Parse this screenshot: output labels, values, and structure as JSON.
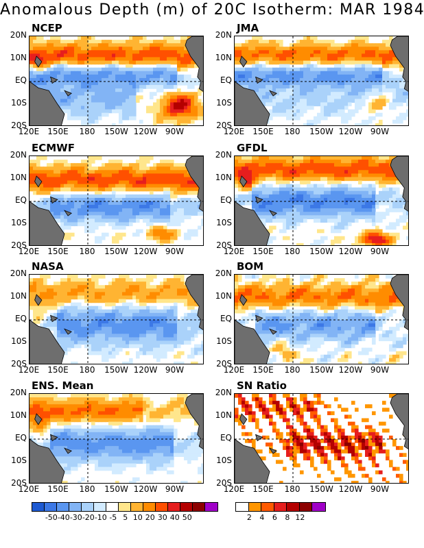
{
  "title": "Anomalous Depth (m) of 20C Isotherm: MAR 1984",
  "y_ticks": [
    "20N",
    "10N",
    "EQ",
    "10S",
    "20S"
  ],
  "x_ticks": [
    "120E",
    "150E",
    "180",
    "150W",
    "120W",
    "90W"
  ],
  "panels": [
    {
      "label": "NCEP",
      "pattern": 0
    },
    {
      "label": "JMA",
      "pattern": 1
    },
    {
      "label": "ECMWF",
      "pattern": 2
    },
    {
      "label": "GFDL",
      "pattern": 3
    },
    {
      "label": "NASA",
      "pattern": 4
    },
    {
      "label": "BOM",
      "pattern": 5
    },
    {
      "label": "ENS. Mean",
      "pattern": 6
    },
    {
      "label": "SN Ratio",
      "pattern": 7
    }
  ],
  "colorbar_anomaly": {
    "colors": [
      "#1e5ad2",
      "#3c78e6",
      "#5a96f0",
      "#82b4f5",
      "#aad2fa",
      "#d2ebff",
      "#ffffff",
      "#ffe68c",
      "#ffb432",
      "#ff8c00",
      "#ff5000",
      "#e61e1e",
      "#b40000",
      "#8c0000",
      "#a000c8"
    ],
    "labels": [
      "-50",
      "-40",
      "-30",
      "-20",
      "-10",
      "-5",
      "5",
      "10",
      "20",
      "30",
      "40",
      "50"
    ]
  },
  "colorbar_sn": {
    "colors": [
      "#ffffff",
      "#ff9600",
      "#ff5a00",
      "#e61e1e",
      "#b40000",
      "#8c0000",
      "#a000c8"
    ],
    "labels": [
      "2",
      "4",
      "6",
      "8",
      "12"
    ]
  }
}
